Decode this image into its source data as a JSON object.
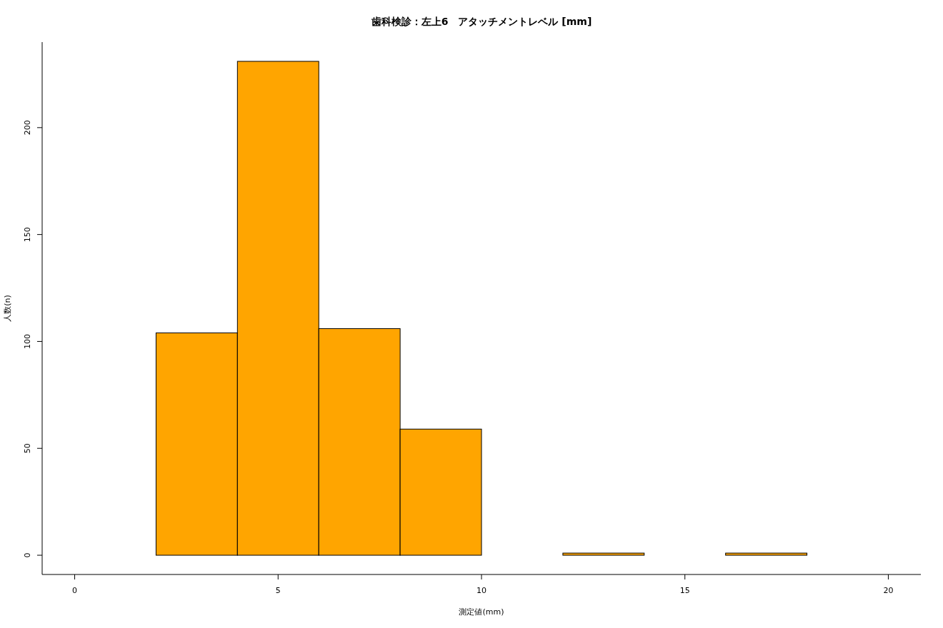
{
  "chart_data": {
    "type": "histogram",
    "title": "歯科検診：左上6　アタッチメントレベル [mm]",
    "xlabel": "測定値(mm)",
    "ylabel": "人数(n)",
    "bins": [
      2,
      4,
      6,
      8,
      10,
      12,
      14,
      16,
      18
    ],
    "values": [
      104,
      231,
      106,
      59,
      0,
      1,
      0,
      1
    ],
    "color": "#ffa500",
    "xlim": [
      -0.8,
      20.8
    ],
    "ylim": [
      -9,
      240
    ],
    "xticks": [
      0,
      5,
      10,
      15,
      20
    ],
    "yticks": [
      0,
      50,
      100,
      150,
      200
    ]
  }
}
